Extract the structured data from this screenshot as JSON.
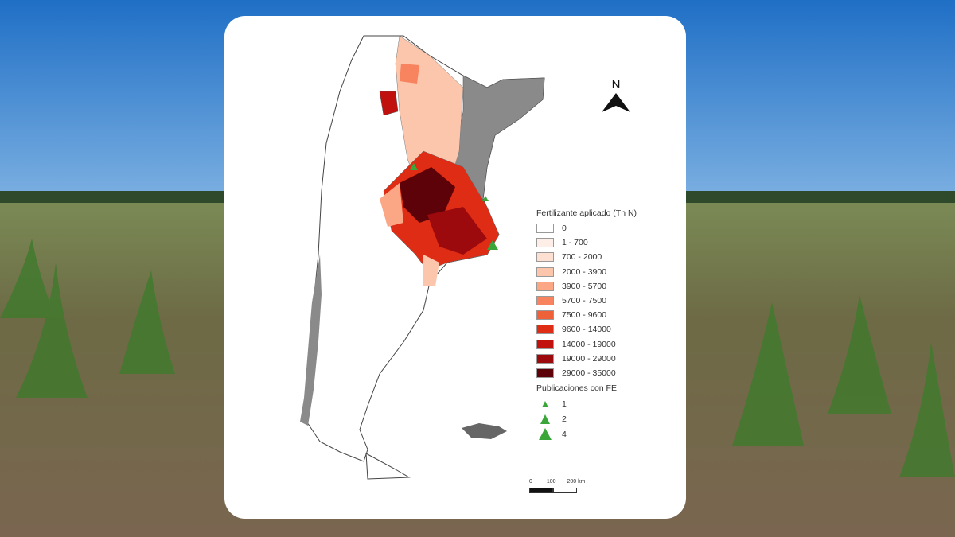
{
  "legend": {
    "title": "Fertilizante aplicado (Tn N)",
    "classes": [
      {
        "label": "0",
        "color": "#ffffff"
      },
      {
        "label": "1 - 700",
        "color": "#fdeee8"
      },
      {
        "label": "700 - 2000",
        "color": "#fde0d2"
      },
      {
        "label": "2000 - 3900",
        "color": "#fcc6ac"
      },
      {
        "label": "3900 - 5700",
        "color": "#fba786"
      },
      {
        "label": "5700 - 7500",
        "color": "#f7845e"
      },
      {
        "label": "7500 - 9600",
        "color": "#ef6239"
      },
      {
        "label": "9600 - 14000",
        "color": "#df2c14"
      },
      {
        "label": "14000 - 19000",
        "color": "#c1110f"
      },
      {
        "label": "19000 - 29000",
        "color": "#9c0a0d"
      },
      {
        "label": "29000 - 35000",
        "color": "#5d0208"
      }
    ],
    "symbol_title": "Publicaciones con FE",
    "symbols": [
      {
        "label": "1"
      },
      {
        "label": "2"
      },
      {
        "label": "4"
      }
    ],
    "symbol_color": "#3aa63a",
    "no_data_color": "#8a8a8a"
  },
  "north_label": "N",
  "scale": {
    "labels": [
      "0",
      "100",
      "200 km"
    ]
  }
}
